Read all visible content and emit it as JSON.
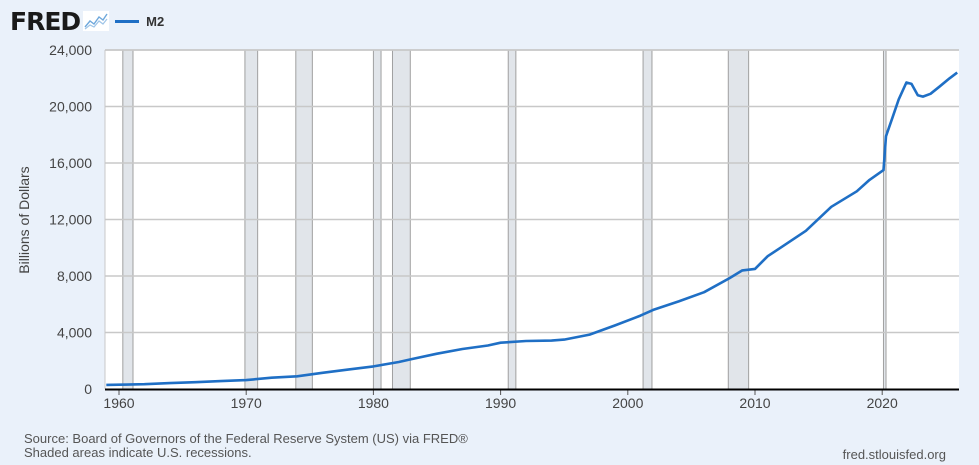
{
  "header": {
    "logo": "FRED",
    "logo_icon": "line-chart-icon",
    "legend_label": "M2",
    "legend_color": "#1f6fc5"
  },
  "footer": {
    "source": "Source: Board of Governors of the Federal Reserve System (US) via FRED®",
    "note": "Shaded areas indicate U.S. recessions.",
    "site": "fred.stlouisfed.org"
  },
  "chart_data": {
    "type": "line",
    "title": "M2",
    "xlabel": "",
    "ylabel": "Billions of Dollars",
    "ylim": [
      0,
      24000
    ],
    "xlim": [
      1959,
      2025.9
    ],
    "yticks": [
      0,
      4000,
      8000,
      12000,
      16000,
      20000,
      24000
    ],
    "ytick_labels": [
      "0",
      "4,000",
      "8,000",
      "12,000",
      "16,000",
      "20,000",
      "24,000"
    ],
    "xticks": [
      1960,
      1970,
      1980,
      1990,
      2000,
      2010,
      2020
    ],
    "xtick_labels": [
      "1960",
      "1970",
      "1980",
      "1990",
      "2000",
      "2010",
      "2020"
    ],
    "grid": true,
    "legend_position": "top-left",
    "series": [
      {
        "name": "M2",
        "color": "#1f6fc5",
        "x": [
          1959,
          1960,
          1962,
          1964,
          1966,
          1968,
          1970,
          1972,
          1974,
          1975,
          1976,
          1978,
          1980,
          1982,
          1983,
          1985,
          1987,
          1989,
          1990,
          1992,
          1994,
          1995,
          1997,
          1999,
          2001,
          2002,
          2004,
          2006,
          2008,
          2009,
          2010,
          2011,
          2012,
          2014,
          2016,
          2018,
          2019,
          2020.1,
          2020.3,
          2020.8,
          2021.3,
          2021.9,
          2022.3,
          2022.8,
          2023.2,
          2023.8,
          2024.5,
          2025.3,
          2025.9
        ],
        "values": [
          290,
          305,
          340,
          420,
          480,
          560,
          630,
          800,
          900,
          1020,
          1150,
          1370,
          1600,
          1910,
          2120,
          2500,
          2830,
          3080,
          3280,
          3400,
          3430,
          3500,
          3850,
          4500,
          5200,
          5600,
          6200,
          6850,
          7850,
          8400,
          8500,
          9400,
          10000,
          11200,
          12900,
          14000,
          14800,
          15500,
          17900,
          19200,
          20500,
          21700,
          21600,
          20800,
          20700,
          20900,
          21400,
          22000,
          22400
        ]
      }
    ],
    "recessions": [
      [
        1960.3,
        1961.1
      ],
      [
        1969.9,
        1970.9
      ],
      [
        1973.9,
        1975.2
      ],
      [
        1980.0,
        1980.6
      ],
      [
        1981.5,
        1982.9
      ],
      [
        1990.6,
        1991.2
      ],
      [
        2001.2,
        2001.9
      ],
      [
        2007.9,
        2009.5
      ],
      [
        2020.1,
        2020.3
      ]
    ]
  }
}
